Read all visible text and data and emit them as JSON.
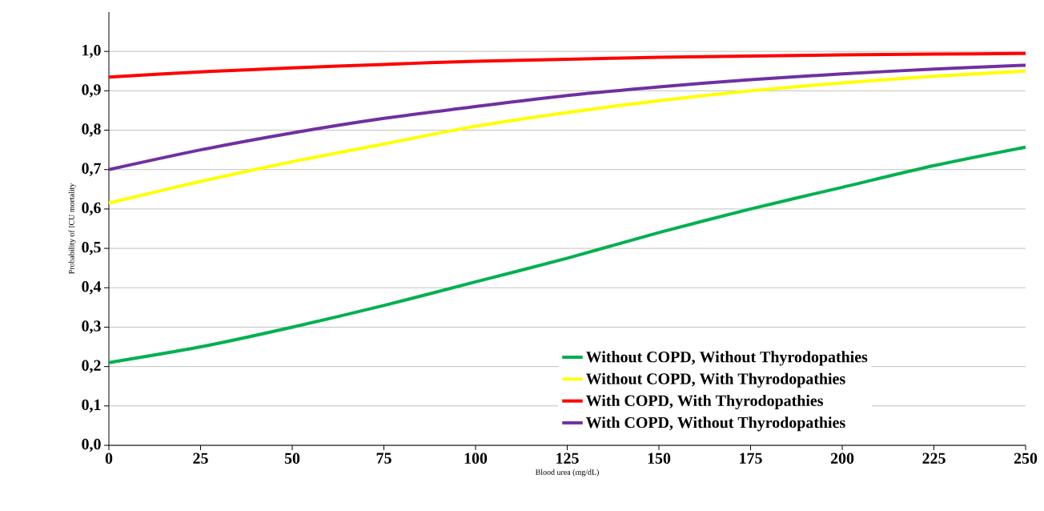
{
  "chart_data": {
    "type": "line",
    "xlabel": "Blood urea (mg/dL)",
    "ylabel": "Probability of  ICU mortality",
    "x": [
      0,
      25,
      50,
      75,
      100,
      125,
      150,
      175,
      200,
      225,
      250
    ],
    "series": [
      {
        "name": "Without COPD, Without Thyrodopathies",
        "color": "#00b050",
        "values": [
          0.21,
          0.25,
          0.3,
          0.355,
          0.415,
          0.475,
          0.54,
          0.6,
          0.655,
          0.71,
          0.757
        ]
      },
      {
        "name": "Without COPD, With Thyrodopathies",
        "color": "#ffff00",
        "values": [
          0.615,
          0.67,
          0.72,
          0.765,
          0.81,
          0.845,
          0.875,
          0.9,
          0.92,
          0.937,
          0.95
        ]
      },
      {
        "name": "With COPD, With Thyrodopathies",
        "color": "#ff0000",
        "values": [
          0.935,
          0.948,
          0.958,
          0.967,
          0.975,
          0.98,
          0.985,
          0.988,
          0.991,
          0.993,
          0.995
        ]
      },
      {
        "name": "With COPD, Without Thyrodopathies",
        "color": "#7030a0",
        "values": [
          0.7,
          0.75,
          0.793,
          0.83,
          0.86,
          0.888,
          0.91,
          0.928,
          0.943,
          0.955,
          0.965
        ]
      }
    ],
    "xlim": [
      0,
      250
    ],
    "ylim": [
      0,
      1.1
    ],
    "xticks": [
      0,
      25,
      50,
      75,
      100,
      125,
      150,
      175,
      200,
      225,
      250
    ],
    "yticks": [
      {
        "value": 0,
        "label": "0,0"
      },
      {
        "value": 0.1,
        "label": "0,1"
      },
      {
        "value": 0.2,
        "label": "0,2"
      },
      {
        "value": 0.3,
        "label": "0,3"
      },
      {
        "value": 0.4,
        "label": "0,4"
      },
      {
        "value": 0.5,
        "label": "0,5"
      },
      {
        "value": 0.6,
        "label": "0,6"
      },
      {
        "value": 0.7,
        "label": "0,7"
      },
      {
        "value": 0.8,
        "label": "0,8"
      },
      {
        "value": 0.9,
        "label": "0,9"
      },
      {
        "value": 1.0,
        "label": "1,0"
      }
    ],
    "grid": "y",
    "legend": "bottom right",
    "marker": "none",
    "line_style": "solid"
  }
}
